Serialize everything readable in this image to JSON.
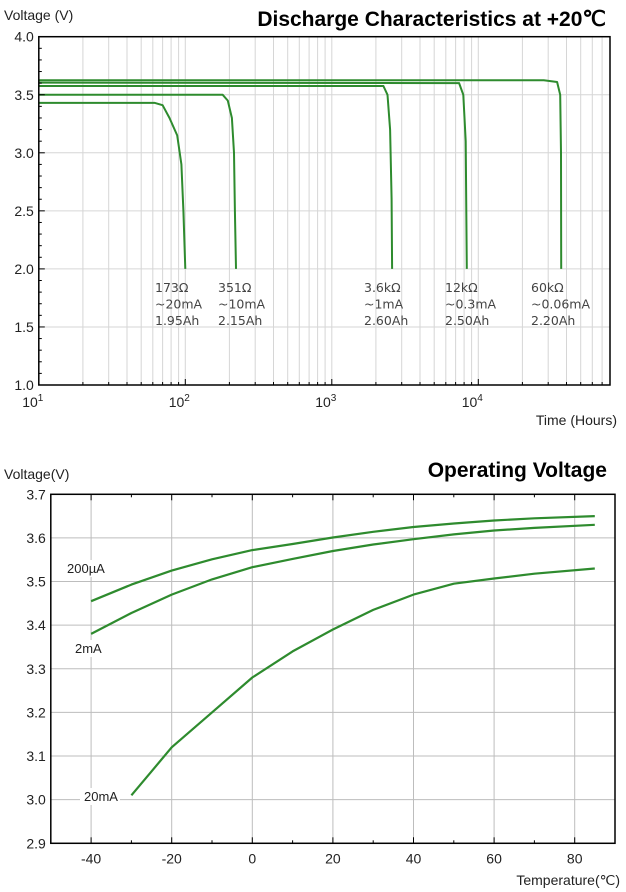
{
  "chart_data": [
    {
      "type": "line",
      "title": "Discharge Characteristics at +20℃",
      "ylabel": "Voltage (V)",
      "xlabel": "Time (Hours)",
      "xscale": "log",
      "xlim": [
        10,
        80000
      ],
      "ylim": [
        1.0,
        4.0
      ],
      "grid": true,
      "color": "#2e8b2e",
      "xticks": [
        {
          "base": "10",
          "exp": "1",
          "value": 10
        },
        {
          "base": "10",
          "exp": "2",
          "value": 100
        },
        {
          "base": "10",
          "exp": "3",
          "value": 1000
        },
        {
          "base": "10",
          "exp": "4",
          "value": 10000
        }
      ],
      "yticks": [
        "1.0",
        "1.5",
        "2.0",
        "2.5",
        "3.0",
        "3.5",
        "4.0"
      ],
      "series": [
        {
          "name": "173Ω",
          "label": [
            "173Ω",
            "~20mA",
            "1.95Ah"
          ],
          "points": [
            [
              10,
              3.43
            ],
            [
              62,
              3.43
            ],
            [
              70,
              3.41
            ],
            [
              78,
              3.3
            ],
            [
              88,
              3.15
            ],
            [
              94,
              2.9
            ],
            [
              97,
              2.5
            ],
            [
              100,
              2.0
            ]
          ]
        },
        {
          "name": "351Ω",
          "label": [
            "351Ω",
            "~10mA",
            "2.15Ah"
          ],
          "points": [
            [
              10,
              3.5
            ],
            [
              180,
              3.5
            ],
            [
              195,
              3.45
            ],
            [
              208,
              3.3
            ],
            [
              215,
              3.0
            ],
            [
              218,
              2.5
            ],
            [
              222,
              2.0
            ]
          ]
        },
        {
          "name": "3.6kΩ",
          "label": [
            "3.6kΩ",
            "~1mA",
            "2.60Ah"
          ],
          "points": [
            [
              10,
              3.575
            ],
            [
              2250,
              3.575
            ],
            [
              2400,
              3.5
            ],
            [
              2500,
              3.2
            ],
            [
              2560,
              2.6
            ],
            [
              2580,
              2.0
            ]
          ]
        },
        {
          "name": "12kΩ",
          "label": [
            "12kΩ",
            "~0.3mA",
            "2.50Ah"
          ],
          "points": [
            [
              10,
              3.605
            ],
            [
              7400,
              3.6
            ],
            [
              7900,
              3.5
            ],
            [
              8200,
              3.1
            ],
            [
              8350,
              2.0
            ]
          ]
        },
        {
          "name": "60kΩ",
          "label": [
            "60kΩ",
            "~0.06mA",
            "2.20Ah"
          ],
          "points": [
            [
              10,
              3.625
            ],
            [
              28000,
              3.625
            ],
            [
              34500,
              3.61
            ],
            [
              36200,
              3.5
            ],
            [
              36700,
              3.0
            ],
            [
              36800,
              2.0
            ]
          ]
        }
      ]
    },
    {
      "type": "line",
      "title": "Operating Voltage",
      "ylabel": "Voltage(V)",
      "xlabel": "Temperature(℃)",
      "xlim": [
        -50,
        90
      ],
      "ylim": [
        2.9,
        3.7
      ],
      "grid": true,
      "color": "#2e8b2e",
      "xticks": [
        "-40",
        "-20",
        "0",
        "20",
        "40",
        "60",
        "80"
      ],
      "yticks": [
        "2.9",
        "3.0",
        "3.1",
        "3.2",
        "3.3",
        "3.4",
        "3.5",
        "3.6",
        "3.7"
      ],
      "series": [
        {
          "name": "200µA",
          "points": [
            [
              -40,
              3.455
            ],
            [
              -30,
              3.493
            ],
            [
              -20,
              3.525
            ],
            [
              -10,
              3.551
            ],
            [
              0,
              3.572
            ],
            [
              10,
              3.586
            ],
            [
              20,
              3.601
            ],
            [
              30,
              3.614
            ],
            [
              40,
              3.625
            ],
            [
              50,
              3.633
            ],
            [
              60,
              3.64
            ],
            [
              70,
              3.645
            ],
            [
              85,
              3.65
            ]
          ]
        },
        {
          "name": "2mA",
          "points": [
            [
              -40,
              3.38
            ],
            [
              -30,
              3.428
            ],
            [
              -20,
              3.47
            ],
            [
              -10,
              3.505
            ],
            [
              0,
              3.533
            ],
            [
              10,
              3.552
            ],
            [
              20,
              3.57
            ],
            [
              30,
              3.585
            ],
            [
              40,
              3.597
            ],
            [
              50,
              3.608
            ],
            [
              60,
              3.617
            ],
            [
              70,
              3.623
            ],
            [
              85,
              3.63
            ]
          ]
        },
        {
          "name": "20mA",
          "points": [
            [
              -30,
              3.01
            ],
            [
              -25,
              3.065
            ],
            [
              -20,
              3.12
            ],
            [
              -10,
              3.2
            ],
            [
              0,
              3.28
            ],
            [
              10,
              3.34
            ],
            [
              20,
              3.39
            ],
            [
              30,
              3.435
            ],
            [
              40,
              3.47
            ],
            [
              50,
              3.495
            ],
            [
              60,
              3.507
            ],
            [
              70,
              3.518
            ],
            [
              85,
              3.53
            ]
          ]
        }
      ]
    }
  ]
}
